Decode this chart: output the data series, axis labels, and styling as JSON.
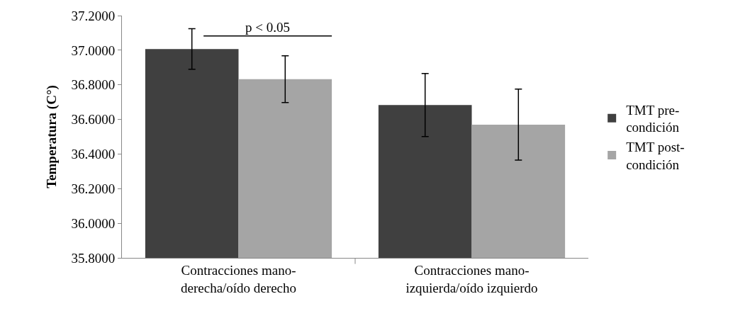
{
  "chart_data": {
    "type": "bar",
    "ylabel": "Temperatura (C°)",
    "categories": [
      "Contracciones mano-derecha/oído derecho",
      "Contracciones mano-izquierda/oído izquierdo"
    ],
    "series": [
      {
        "name": "TMT pre-condición",
        "color": "#404040",
        "values": [
          37.007,
          36.683
        ],
        "errors": [
          0.117,
          0.182
        ]
      },
      {
        "name": "TMT post-condición",
        "color": "#a5a5a5",
        "values": [
          36.833,
          36.57
        ],
        "errors": [
          0.135,
          0.205
        ]
      }
    ],
    "ylim": [
      35.8,
      37.2
    ],
    "yticks": [
      {
        "value": 35.8,
        "label": "35.8000"
      },
      {
        "value": 36.0,
        "label": "36.0000"
      },
      {
        "value": 36.2,
        "label": "36.2000"
      },
      {
        "value": 36.4,
        "label": "36.4000"
      },
      {
        "value": 36.6,
        "label": "36.6000"
      },
      {
        "value": 36.8,
        "label": "36.8000"
      },
      {
        "value": 37.0,
        "label": "37.0000"
      },
      {
        "value": 37.2,
        "label": "37.2000"
      }
    ],
    "annotations": [
      "p < 0.05"
    ],
    "legend": "right"
  }
}
